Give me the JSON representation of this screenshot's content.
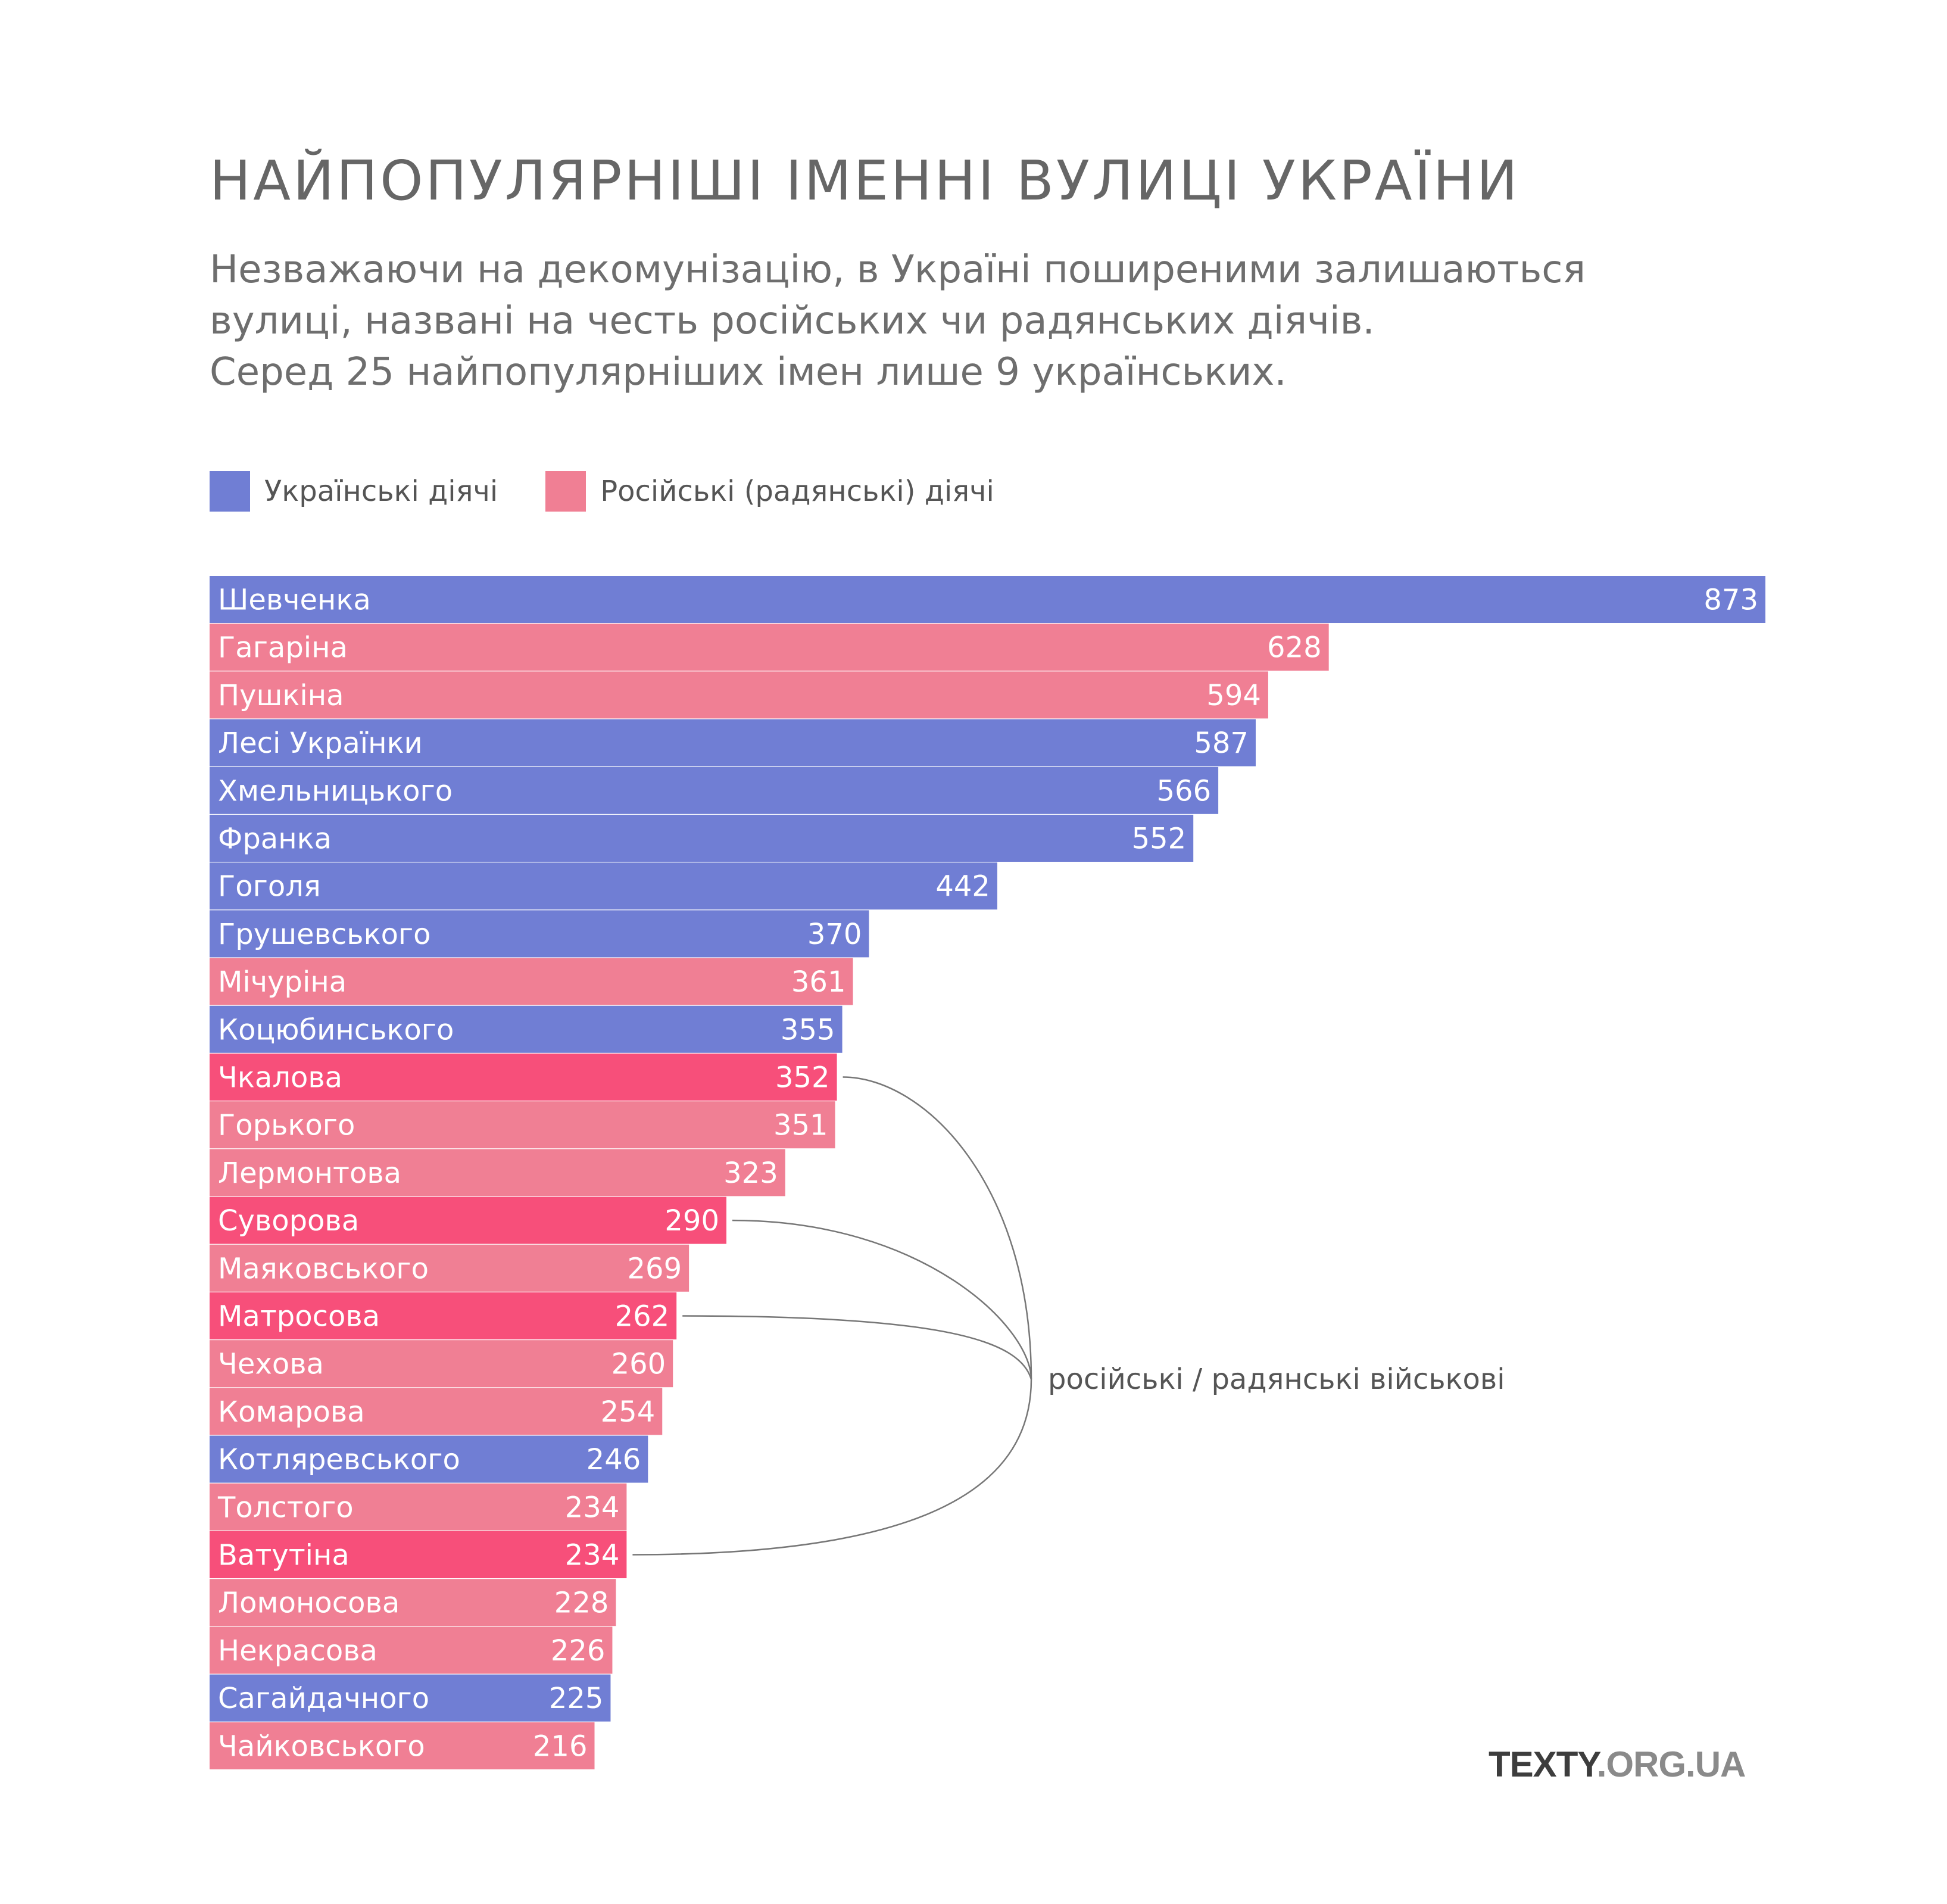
{
  "title": "НАЙПОПУЛЯРНІШІ ІМЕННІ ВУЛИЦІ УКРАЇНИ",
  "subtitle": [
    "Незважаючи на декомунізацію, в Україні поширеними залишаються",
    "вулиці, названі на честь російських чи радянських діячів.",
    "Серед 25 найпопулярніших імен лише 9 українських."
  ],
  "legend": [
    {
      "label": "Українські діячі",
      "color": "#707ed4"
    },
    {
      "label": "Російські (радянські) діячі",
      "color": "#f07f94"
    }
  ],
  "colors": {
    "ukrainian": "#707ed4",
    "russian": "#f07f94",
    "military": "#f74f7a",
    "annotation_line": "#777777"
  },
  "annotation": "російські / радянські військові",
  "brand": {
    "part1": "TEXTY",
    "part2": ".ORG.UA"
  },
  "chart_data": {
    "type": "bar",
    "orientation": "horizontal",
    "title": "НАЙПОПУЛЯРНІШІ ІМЕННІ ВУЛИЦІ УКРАЇНИ",
    "xlim": [
      0,
      873
    ],
    "grid": false,
    "legend_position": "top-left",
    "categories": [
      "Шевченка",
      "Гагаріна",
      "Пушкіна",
      "Лесі Українки",
      "Хмельницького",
      "Франка",
      "Гоголя",
      "Грушевського",
      "Мічуріна",
      "Коцюбинського",
      "Чкалова",
      "Горького",
      "Лермонтова",
      "Суворова",
      "Маяковського",
      "Матросова",
      "Чехова",
      "Комарова",
      "Котляревського",
      "Толстого",
      "Ватутіна",
      "Ломоносова",
      "Некрасова",
      "Сагайдачного",
      "Чайковського"
    ],
    "values": [
      873,
      628,
      594,
      587,
      566,
      552,
      442,
      370,
      361,
      355,
      352,
      351,
      323,
      290,
      269,
      262,
      260,
      254,
      246,
      234,
      234,
      228,
      226,
      225,
      216
    ],
    "groups": [
      "ukrainian",
      "russian",
      "russian",
      "ukrainian",
      "ukrainian",
      "ukrainian",
      "ukrainian",
      "ukrainian",
      "russian",
      "ukrainian",
      "military",
      "russian",
      "russian",
      "military",
      "russian",
      "military",
      "russian",
      "russian",
      "ukrainian",
      "russian",
      "military",
      "russian",
      "russian",
      "ukrainian",
      "russian"
    ]
  }
}
